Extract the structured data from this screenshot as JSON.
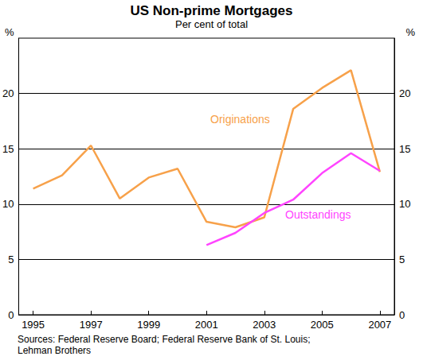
{
  "chart_data": {
    "type": "line",
    "title": "US Non-prime Mortgages",
    "subtitle": "Per cent of total",
    "y_label": "%",
    "source": "Sources: Federal Reserve Board; Federal Reserve Bank of St. Louis;\nLehman Brothers",
    "x": [
      1995,
      1996,
      1997,
      1998,
      1999,
      2000,
      2001,
      2002,
      2003,
      2004,
      2005,
      2006,
      2007
    ],
    "series": [
      {
        "name": "Originations",
        "color": "#f7a14a",
        "values": [
          11.4,
          12.6,
          15.3,
          10.5,
          12.4,
          13.2,
          8.4,
          7.9,
          8.8,
          18.6,
          20.5,
          22.1,
          12.9
        ]
      },
      {
        "name": "Outstandings",
        "color": "#ff44ff",
        "values": [
          null,
          null,
          null,
          null,
          null,
          null,
          6.3,
          7.4,
          9.2,
          10.4,
          12.8,
          14.6,
          13.0
        ]
      }
    ],
    "xlim": [
      1994.5,
      2007.5
    ],
    "xticks": [
      1995,
      1997,
      1999,
      2001,
      2003,
      2005,
      2007
    ],
    "ylim": [
      0,
      25
    ],
    "yticks": [
      0,
      5,
      10,
      15,
      20
    ],
    "y2lim": [
      0,
      25
    ],
    "y2ticks": [
      0,
      5,
      10,
      15,
      20
    ],
    "grid": true
  }
}
